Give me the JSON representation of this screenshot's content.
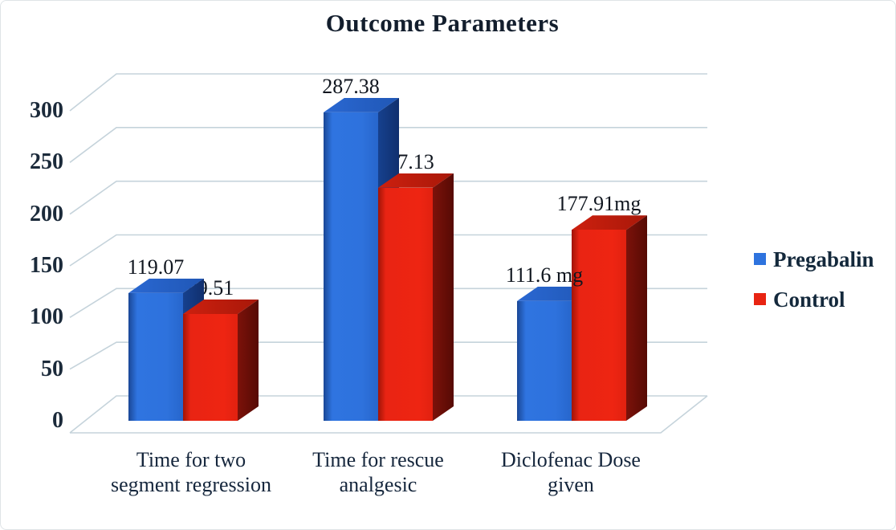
{
  "chart_data": {
    "type": "bar",
    "style": "3d-clustered",
    "title": "Outcome Parameters",
    "categories": [
      "Time for two\nsegment regression",
      "Time for rescue\nanalgesic",
      "Diclofenac Dose\ngiven"
    ],
    "series": [
      {
        "name": "Pregabalin",
        "color": "#2e73de",
        "values": [
          119.07,
          287.38,
          111.6
        ],
        "data_labels": [
          "119.07",
          "287.38",
          "111.6 mg"
        ]
      },
      {
        "name": "Control",
        "color": "#e82412",
        "values": [
          99.51,
          217.13,
          177.91
        ],
        "data_labels": [
          "99.51",
          "217.13",
          "177.91mg"
        ]
      }
    ],
    "y_ticks": [
      0,
      50,
      100,
      150,
      200,
      250,
      300
    ],
    "ylim": [
      0,
      300
    ],
    "xlabel": "",
    "ylabel": "",
    "grid": "horizontal-light",
    "gridline_color": "#c5d3db",
    "legend_position": "right",
    "text_color": "#15253a"
  }
}
